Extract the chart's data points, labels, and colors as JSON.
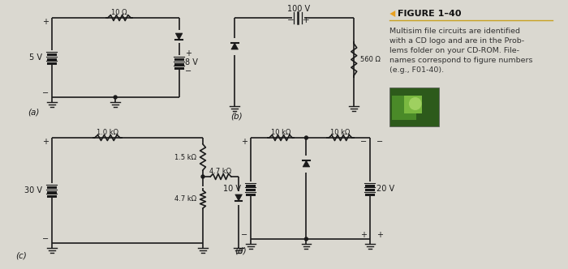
{
  "bg_color": "#dad8d0",
  "title": "FIGURE 1–40",
  "circuit_color": "#1a1a1a",
  "orange_color": "#e8a020",
  "gold_line_color": "#c8a020",
  "text_color": "#222222",
  "body_text_lines": [
    "Multisim file circuits are identified",
    "with a CD logo and are in the Prob-",
    "lems folder on your CD-ROM. File-",
    "names correspond to figure numbers",
    "(e.g., F01-40)."
  ],
  "label_a": "(a)",
  "label_b": "(b)",
  "label_c": "(c)",
  "label_d": "(d)",
  "circuit_a": {
    "vsource": "5 V",
    "resistor": "10 Ω",
    "battery": "8 V"
  },
  "circuit_b": {
    "vsource": "100 V",
    "resistor": "560 Ω"
  },
  "circuit_c": {
    "vsource": "30 V",
    "r1": "1.0 kΩ",
    "r2": "1.5 kΩ",
    "r3": "4.7 kΩ",
    "r4": "4.7 kΩ"
  },
  "circuit_d": {
    "vsource1": "10 V",
    "vsource2": "20 V",
    "r1": "10 kΩ",
    "r2": "10 kΩ"
  }
}
